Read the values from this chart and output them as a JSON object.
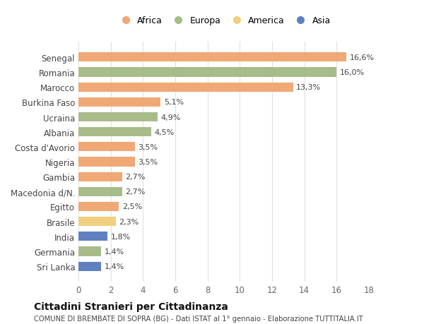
{
  "countries": [
    "Senegal",
    "Romania",
    "Marocco",
    "Burkina Faso",
    "Ucraina",
    "Albania",
    "Costa d'Avorio",
    "Nigeria",
    "Gambia",
    "Macedonia d/N.",
    "Egitto",
    "Brasile",
    "India",
    "Germania",
    "Sri Lanka"
  ],
  "values": [
    16.6,
    16.0,
    13.3,
    5.1,
    4.9,
    4.5,
    3.5,
    3.5,
    2.7,
    2.7,
    2.5,
    2.3,
    1.8,
    1.4,
    1.4
  ],
  "labels": [
    "16,6%",
    "16,0%",
    "13,3%",
    "5,1%",
    "4,9%",
    "4,5%",
    "3,5%",
    "3,5%",
    "2,7%",
    "2,7%",
    "2,5%",
    "2,3%",
    "1,8%",
    "1,4%",
    "1,4%"
  ],
  "continents": [
    "Africa",
    "Europa",
    "Africa",
    "Africa",
    "Europa",
    "Europa",
    "Africa",
    "Africa",
    "Africa",
    "Europa",
    "Africa",
    "America",
    "Asia",
    "Europa",
    "Asia"
  ],
  "colors": {
    "Africa": "#F0A875",
    "Europa": "#A8BC8A",
    "America": "#F0D080",
    "Asia": "#6080C0"
  },
  "legend_order": [
    "Africa",
    "Europa",
    "America",
    "Asia"
  ],
  "xlim": [
    0,
    18
  ],
  "xticks": [
    0,
    2,
    4,
    6,
    8,
    10,
    12,
    14,
    16,
    18
  ],
  "title": "Cittadini Stranieri per Cittadinanza",
  "subtitle": "COMUNE DI BREMBATE DI SOPRA (BG) - Dati ISTAT al 1° gennaio - Elaborazione TUTTITALIA.IT",
  "bg_color": "#ffffff",
  "grid_color": "#e0e0e0"
}
